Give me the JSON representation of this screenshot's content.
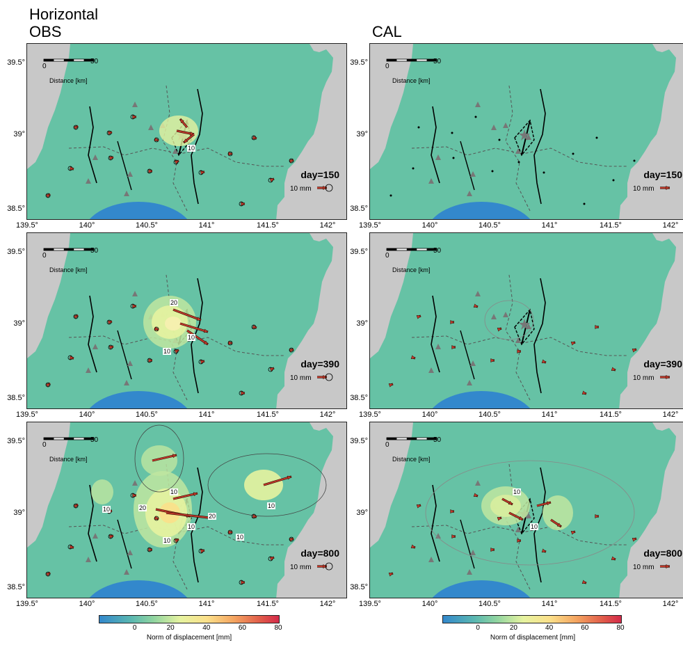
{
  "header": {
    "line1": "Horizontal",
    "col_obs": "OBS",
    "col_cal": "CAL"
  },
  "axes": {
    "lat_labels": [
      "39.5°",
      "39°",
      "38.5°"
    ],
    "lon_labels": [
      "139.5°",
      "140°",
      "140.5°",
      "141°",
      "141.5°",
      "142°"
    ]
  },
  "scalebar": {
    "start": "0",
    "end": "50",
    "label": "Distance [km]"
  },
  "vector_scale": {
    "label": "10 mm"
  },
  "rows": [
    {
      "day": "day=150"
    },
    {
      "day": "day=390"
    },
    {
      "day": "day=800"
    }
  ],
  "colorbar": {
    "ticks": [
      "0",
      "20",
      "40",
      "60",
      "80"
    ],
    "title": "Norm of displacement [mm]",
    "range_mm": [
      -20,
      80
    ]
  },
  "contour_labels": {
    "obs_150": [
      "10"
    ],
    "obs_390": [
      "10",
      "20",
      "10"
    ],
    "obs_800": [
      "10",
      "10",
      "10",
      "20",
      "10",
      "20",
      "10",
      "10"
    ],
    "cal_800": [
      "10",
      "10"
    ]
  },
  "colors": {
    "sea_green": "#66c2a5",
    "land_gray": "#c8c8c8",
    "arrow_red": "#c0392b",
    "blue_patch": "#3388cc"
  }
}
